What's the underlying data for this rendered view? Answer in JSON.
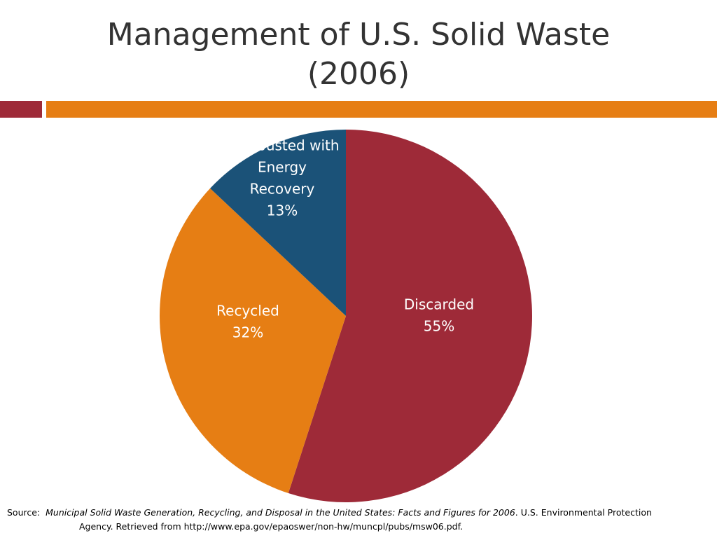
{
  "title": {
    "line1": "Management of U.S. Solid Waste",
    "line2": "(2006)"
  },
  "colors": {
    "discarded": "#9E2A38",
    "recycled": "#E67E14",
    "combusted": "#1B5278",
    "accent_bar_left": "#9E2A38",
    "accent_bar_right": "#E67E14"
  },
  "chart_data": {
    "type": "pie",
    "title": "Management of U.S. Solid Waste (2006)",
    "slices": [
      {
        "name": "Discarded",
        "value": 55,
        "label_lines": [
          "Discarded",
          "55%"
        ],
        "color": "#9E2A38"
      },
      {
        "name": "Recycled",
        "value": 32,
        "label_lines": [
          "Recycled",
          "32%"
        ],
        "color": "#E67E14"
      },
      {
        "name": "Combusted with Energy Recovery",
        "value": 13,
        "label_lines": [
          "Combusted with",
          "Energy",
          "Recovery",
          "13%"
        ],
        "color": "#1B5278"
      }
    ],
    "start": "12 o'clock",
    "direction": "clockwise"
  },
  "source": {
    "prefix": "Source:",
    "italic_title": "Municipal Solid Waste Generation, Recycling, and Disposal in the United States: Facts and Figures for 2006",
    "rest_line1": ". U.S. Environmental Protection",
    "line2": "Agency.  Retrieved from http://www.epa.gov/epaoswer/non-hw/muncpl/pubs/msw06.pdf."
  }
}
